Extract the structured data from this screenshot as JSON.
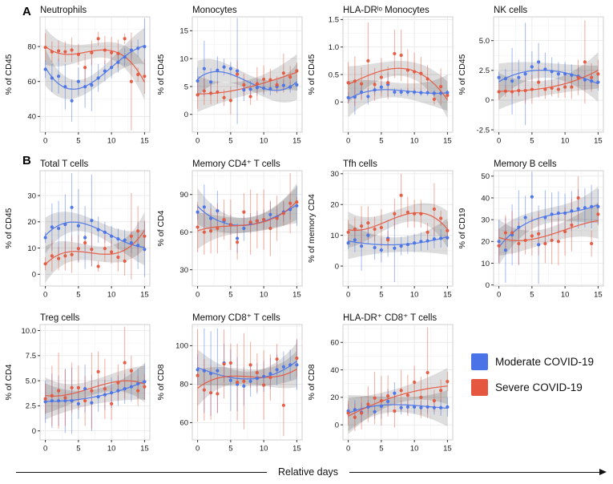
{
  "figure": {
    "row_labels": {
      "a": "A",
      "b": "B"
    },
    "x_axis_label": "Relative days"
  },
  "colors": {
    "moderate": "#4A73E8",
    "severe": "#E5573F"
  },
  "legend": {
    "items": [
      {
        "label": "Moderate COVID-19",
        "color_key": "moderate"
      },
      {
        "label": "Severe COVID-19",
        "color_key": "severe"
      }
    ]
  },
  "chart_data": {
    "type": "scatter",
    "x_values": [
      0,
      1,
      2,
      3,
      4,
      5,
      6,
      7,
      8,
      9,
      10,
      11,
      12,
      13,
      14,
      15
    ],
    "xticks": [
      0,
      5,
      10,
      15
    ],
    "xtick_labels": [
      "0",
      "5",
      "10",
      "15"
    ],
    "xlim": [
      -0.8,
      15.8
    ],
    "series_names": [
      "Moderate COVID-19",
      "Severe COVID-19"
    ],
    "panels": [
      {
        "title": "Neutrophils",
        "ylabel": "% of CD45",
        "ylim": [
          31,
          97
        ],
        "yticks": [
          40,
          60,
          80
        ],
        "ytick_labels": [
          "40",
          "60",
          "80"
        ],
        "moderate": {
          "y": [
            67,
            62,
            63,
            57,
            49,
            60,
            57,
            58,
            62,
            66,
            68,
            71,
            74,
            78,
            79,
            80
          ],
          "err": [
            5,
            8,
            10,
            13,
            12,
            8,
            12,
            15,
            8,
            6,
            6,
            6,
            5,
            5,
            5,
            16
          ]
        },
        "severe": {
          "y": [
            79.5,
            77,
            77.5,
            77,
            78,
            75.5,
            68,
            76.5,
            84.5,
            78,
            76.5,
            76,
            84.5,
            60,
            64,
            63
          ],
          "err": [
            8,
            6,
            6,
            6,
            7,
            6,
            8,
            7,
            4,
            8,
            9,
            8,
            3,
            28,
            4,
            10
          ]
        }
      },
      {
        "title": "Monocytes",
        "ylabel": "% of CD45",
        "ylim": [
          -3.2,
          17.5
        ],
        "yticks": [
          0,
          5,
          10,
          15
        ],
        "ytick_labels": [
          "0",
          "5",
          "10",
          "15"
        ],
        "moderate": {
          "y": [
            6,
            8.2,
            5.8,
            7.9,
            8.5,
            8.2,
            7.8,
            4.4,
            4.5,
            4.8,
            4.7,
            4.6,
            5,
            5.2,
            4.9,
            5.3
          ],
          "err": [
            2.5,
            5,
            2.5,
            2.5,
            1.5,
            1.2,
            9.5,
            2,
            1.5,
            1.5,
            1.2,
            1.2,
            1,
            1,
            1,
            1
          ]
        },
        "severe": {
          "y": [
            3.5,
            4.2,
            3.8,
            4,
            3,
            2.5,
            7.2,
            5.3,
            3.2,
            5.5,
            6.3,
            6.2,
            5.3,
            7.4,
            6.7,
            7.8
          ],
          "err": [
            2.5,
            2.5,
            2,
            2,
            1.5,
            2.5,
            2.5,
            2,
            1.5,
            3,
            2.5,
            2,
            1.5,
            3.5,
            2,
            1.5
          ]
        }
      },
      {
        "title": "HLA-DRˡᵒ Monocytes",
        "ylabel": "% of CD45",
        "ylim": [
          -0.55,
          1.55
        ],
        "yticks": [
          0,
          0.5,
          1,
          1.5
        ],
        "ytick_labels": [
          "0",
          "0.5",
          "1.0",
          "1.5"
        ],
        "moderate": {
          "y": [
            0.08,
            0.09,
            0.18,
            0.1,
            0.22,
            0.27,
            0.32,
            0.18,
            0.18,
            0.18,
            0.18,
            0.17,
            0.17,
            0.16,
            0.16,
            0.17
          ],
          "err": [
            0.1,
            0.32,
            0.12,
            0.15,
            0.1,
            0.1,
            0.22,
            0.07,
            0.07,
            0.07,
            0.06,
            0.06,
            0.06,
            0.06,
            0.05,
            0.05
          ]
        },
        "severe": {
          "y": [
            0.35,
            0.38,
            0.33,
            0.75,
            0.32,
            0.45,
            0.35,
            0.88,
            0.85,
            0.58,
            0.55,
            0.52,
            0.42,
            0.05,
            0.28,
            0.12
          ],
          "err": [
            0.38,
            0.45,
            0.3,
            0.7,
            0.3,
            0.35,
            0.3,
            0.44,
            0.47,
            0.38,
            0.35,
            0.3,
            0.25,
            0.1,
            0.33,
            0.1
          ]
        }
      },
      {
        "title": "NK cells",
        "ylabel": "% of CD45",
        "ylim": [
          -2.7,
          7
        ],
        "yticks": [
          -2.5,
          0,
          2.5,
          5
        ],
        "ytick_labels": [
          "-2.5",
          "0",
          "2.5",
          "5.0"
        ],
        "moderate": {
          "y": [
            1.9,
            1.8,
            1.6,
            1.9,
            2.2,
            2.8,
            3.2,
            2.6,
            2.4,
            2.2,
            2.2,
            2.1,
            2,
            1.7,
            1.6,
            1.5
          ],
          "err": [
            0.5,
            0.8,
            2.8,
            1.5,
            4.3,
            1.3,
            1.6,
            1.4,
            1.2,
            1,
            1,
            0.9,
            0.8,
            0.8,
            0.7,
            0.7
          ]
        },
        "severe": {
          "y": [
            0.7,
            0.75,
            0.7,
            0.8,
            0.8,
            0.9,
            1.5,
            0.9,
            1,
            0.9,
            1.1,
            1.1,
            1.9,
            3.2,
            1.9,
            2.2
          ],
          "err": [
            0.7,
            0.5,
            0.5,
            0.5,
            1.1,
            1.2,
            1.3,
            0.8,
            0.7,
            0.7,
            0.9,
            1,
            1.5,
            3.5,
            1.2,
            1.2
          ]
        }
      },
      {
        "title": "Total T cells",
        "ylabel": "% of CD45",
        "ylim": [
          -4.5,
          39.5
        ],
        "yticks": [
          0,
          10,
          20,
          30
        ],
        "ytick_labels": [
          "0",
          "10",
          "20",
          "30"
        ],
        "moderate": {
          "y": [
            14,
            18,
            17.5,
            19,
            25.5,
            18.5,
            14,
            20.5,
            17,
            16,
            14.5,
            13.5,
            13,
            12,
            11,
            9.5
          ],
          "err": [
            2,
            9,
            10.5,
            11.5,
            13,
            14,
            12,
            17.5,
            5,
            4,
            4,
            4,
            4,
            4,
            9,
            10.5
          ]
        },
        "severe": {
          "y": [
            4,
            7,
            6,
            7,
            7.5,
            9.8,
            12,
            9.5,
            3,
            9.8,
            8.5,
            6.5,
            5,
            14.5,
            16.5,
            14.5
          ],
          "err": [
            2.5,
            6,
            4.5,
            5.5,
            7,
            5,
            3,
            6.5,
            2,
            5,
            4.5,
            5.5,
            5.5,
            16.5,
            9.5,
            6
          ]
        }
      },
      {
        "title": "Memory CD4⁺ T cells",
        "ylabel": "% of CD4",
        "ylim": [
          17,
          109
        ],
        "yticks": [
          30,
          60,
          90
        ],
        "ytick_labels": [
          "30",
          "60",
          "90"
        ],
        "moderate": {
          "y": [
            76,
            80,
            71,
            77,
            69,
            66,
            55,
            63,
            67,
            69,
            70,
            74,
            72,
            76,
            78,
            81
          ],
          "err": [
            6,
            18,
            12,
            16,
            8,
            8,
            12,
            10,
            8,
            8,
            8,
            10,
            8,
            8,
            8,
            16
          ]
        },
        "severe": {
          "y": [
            64,
            60,
            61,
            63,
            70,
            66,
            52,
            76,
            68,
            69,
            70,
            63,
            71,
            75,
            83,
            84
          ],
          "err": [
            20,
            18,
            18,
            20,
            16,
            20,
            14,
            15,
            26,
            22,
            24,
            22,
            18,
            10,
            24,
            4
          ]
        }
      },
      {
        "title": "Tfh cells",
        "ylabel": "% of memory CD4",
        "ylim": [
          -6.5,
          31
        ],
        "yticks": [
          0,
          10,
          20,
          30
        ],
        "ytick_labels": [
          "0",
          "10",
          "20",
          "30"
        ],
        "moderate": {
          "y": [
            7.5,
            8.5,
            6.5,
            10,
            6,
            5.2,
            9,
            5.8,
            6.5,
            7,
            7.5,
            8,
            8.2,
            8.8,
            9,
            9.2
          ],
          "err": [
            2,
            4,
            8,
            3,
            4,
            4,
            6,
            11,
            3,
            3,
            3,
            3,
            3,
            3,
            3,
            3
          ]
        },
        "severe": {
          "y": [
            11,
            12,
            13,
            14,
            12,
            12.5,
            8.5,
            17,
            23,
            17.5,
            17,
            17,
            11,
            18.5,
            15.5,
            11.5
          ],
          "err": [
            4,
            4,
            6.5,
            5.5,
            4,
            6,
            3,
            5,
            7,
            5,
            4.5,
            4.5,
            3,
            8.5,
            2.5,
            3
          ]
        }
      },
      {
        "title": "Memory B cells",
        "ylabel": "% of CD19",
        "ylim": [
          -0.5,
          52.5
        ],
        "yticks": [
          0,
          10,
          20,
          30,
          40,
          50
        ],
        "ytick_labels": [
          "0",
          "10",
          "20",
          "30",
          "40",
          "50"
        ],
        "moderate": {
          "y": [
            20,
            16,
            23,
            26.5,
            31,
            40.5,
            18.5,
            31,
            32.5,
            33,
            33,
            34,
            35,
            35.5,
            36,
            36
          ],
          "err": [
            10,
            15,
            14,
            17,
            10,
            11.5,
            18,
            12.5,
            10,
            10,
            9,
            9,
            9,
            9,
            10,
            8
          ]
        },
        "severe": {
          "y": [
            18,
            24,
            24,
            19,
            20.5,
            22.5,
            23.5,
            19,
            20.5,
            20,
            24.5,
            27.5,
            40,
            null,
            19,
            32.5
          ],
          "err": [
            8,
            8,
            10,
            10,
            6.5,
            9,
            10,
            9,
            11,
            11,
            11,
            12,
            10,
            null,
            6,
            5
          ]
        }
      },
      {
        "title": "Treg cells",
        "ylabel": "% of CD4",
        "ylim": [
          -0.9,
          10.6
        ],
        "yticks": [
          0,
          2.5,
          5,
          7.5,
          10
        ],
        "ytick_labels": [
          "0",
          "2.5",
          "5.0",
          "7.5",
          "10.0"
        ],
        "moderate": {
          "y": [
            2.9,
            3,
            3,
            3,
            3,
            2.7,
            4.2,
            2.8,
            3.4,
            3.6,
            3.8,
            4,
            4.2,
            4.4,
            4.7,
            4.9
          ],
          "err": [
            2.1,
            2.7,
            2.5,
            3.2,
            3.3,
            1.5,
            2.4,
            2.8,
            1.5,
            1.5,
            1.5,
            1.5,
            1.5,
            1.5,
            1.5,
            1.8
          ]
        },
        "severe": {
          "y": [
            3.2,
            3.5,
            4,
            3.3,
            4.3,
            4.3,
            3,
            4,
            5.9,
            4.2,
            2.7,
            4.8,
            6.8,
            6,
            4,
            4.4
          ],
          "err": [
            1.5,
            3,
            3.8,
            2.8,
            2.5,
            2.2,
            2.5,
            3.8,
            2,
            3,
            1.6,
            1.8,
            3.6,
            1.5,
            1.5,
            1.3
          ]
        }
      },
      {
        "title": "Memory CD8⁺ T cells",
        "ylabel": "% of CD8",
        "ylim": [
          51,
          111
        ],
        "yticks": [
          60,
          80,
          100
        ],
        "ytick_labels": [
          "60",
          "80",
          "100"
        ],
        "moderate": {
          "y": [
            87.5,
            87,
            85.5,
            87,
            91,
            82,
            80,
            79,
            81.5,
            83,
            84,
            85.5,
            87.5,
            89,
            90,
            90
          ],
          "err": [
            8,
            22,
            22,
            22,
            10,
            16,
            14,
            10,
            8,
            8,
            8,
            8,
            8,
            8,
            8,
            13
          ]
        },
        "severe": {
          "y": [
            84.5,
            77,
            75.5,
            75,
            90.5,
            91,
            81,
            81.5,
            90,
            86,
            79.5,
            83.5,
            93,
            69,
            null,
            93.5
          ],
          "err": [
            24,
            16,
            14,
            10,
            18,
            10,
            20,
            25,
            12,
            10,
            18,
            12,
            8,
            16,
            null,
            10
          ]
        }
      },
      {
        "title": "HLA-DR⁺ CD8⁺ T cells",
        "ylabel": "% of CD8",
        "ylim": [
          -11,
          73
        ],
        "yticks": [
          0,
          20,
          40,
          60
        ],
        "ytick_labels": [
          "0",
          "20",
          "40",
          "60"
        ],
        "moderate": {
          "y": [
            10,
            11,
            9,
            13,
            9.5,
            13.5,
            17,
            23,
            12.5,
            13,
            13,
            12.5,
            13,
            12.5,
            12.5,
            13
          ],
          "err": [
            5,
            7,
            7,
            5,
            5,
            9,
            9,
            8,
            5,
            5,
            5,
            5,
            5,
            5,
            6,
            7
          ]
        },
        "severe": {
          "y": [
            8.5,
            5.5,
            8.5,
            15,
            19.5,
            17.5,
            21,
            10,
            25,
            21.5,
            31,
            20,
            38,
            17.5,
            25,
            31.5
          ],
          "err": [
            9,
            10,
            12,
            13,
            19,
            18,
            15,
            12,
            15,
            15,
            12,
            15,
            33,
            8,
            8,
            7
          ]
        }
      }
    ]
  }
}
